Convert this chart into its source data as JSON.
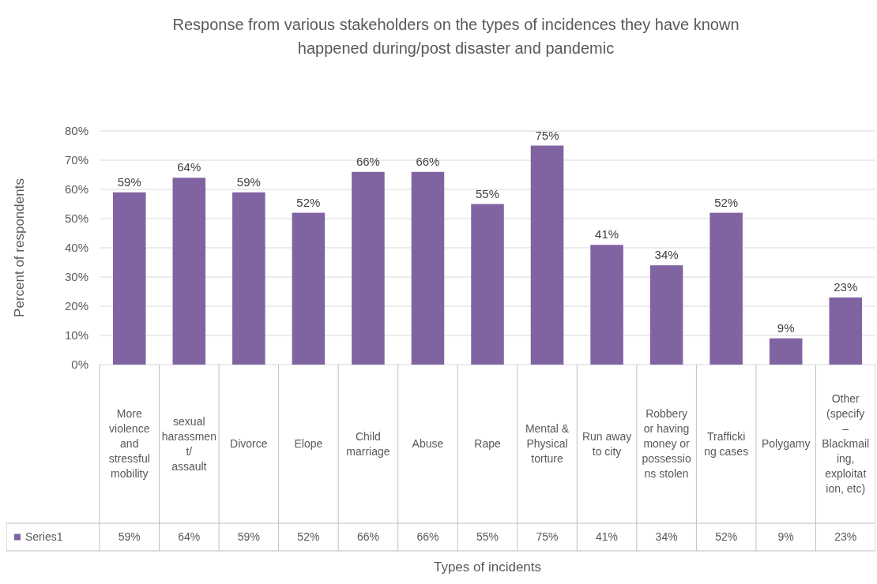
{
  "chart_data": {
    "type": "bar",
    "title": "Response from various stakeholders on the types of incidences they have known happened during/post disaster and pandemic",
    "xlabel": "Types of incidents",
    "ylabel": "Percent of respondents",
    "categories": [
      "More violence and stressful mobility",
      "sexual harassment/ assault",
      "Divorce",
      "Elope",
      "Child marriage",
      "Abuse",
      "Rape",
      "Mental & Physical torture",
      "Run away to city",
      "Robbery or having money or possessions stolen",
      "Trafficking cases",
      "Polygamy",
      "Other (specify – Blackmailing, exploitation, etc)"
    ],
    "series": [
      {
        "name": "Series1",
        "color": "#8064a2",
        "values": [
          59,
          64,
          59,
          52,
          66,
          66,
          55,
          75,
          41,
          34,
          52,
          9,
          23
        ],
        "value_labels": [
          "59%",
          "64%",
          "59%",
          "52%",
          "66%",
          "66%",
          "55%",
          "75%",
          "41%",
          "34%",
          "52%",
          "9%",
          "23%"
        ]
      }
    ],
    "ylim": [
      0,
      80
    ],
    "yticks": [
      {
        "value": 0,
        "label": "0%"
      },
      {
        "value": 10,
        "label": "10%"
      },
      {
        "value": 20,
        "label": "20%"
      },
      {
        "value": 30,
        "label": "30%"
      },
      {
        "value": 40,
        "label": "40%"
      },
      {
        "value": 50,
        "label": "50%"
      },
      {
        "value": 60,
        "label": "60%"
      },
      {
        "value": 70,
        "label": "70%"
      },
      {
        "value": 80,
        "label": "80%"
      }
    ],
    "grid": "y",
    "legend": "bottom"
  }
}
